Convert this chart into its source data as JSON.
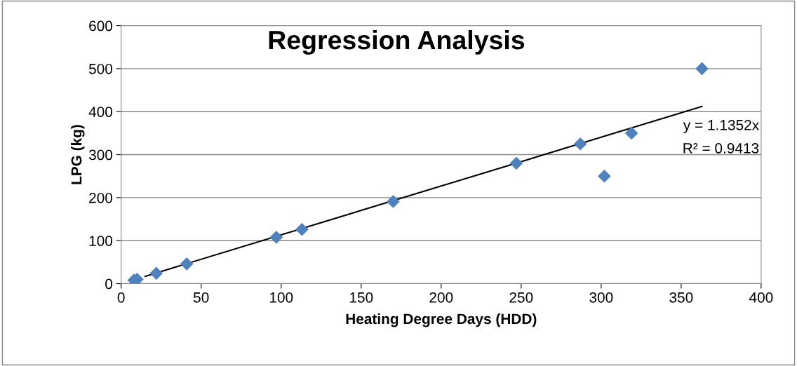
{
  "chart_data": {
    "type": "scatter",
    "title": "Regression Analysis",
    "xlabel": "Heating Degree Days (HDD)",
    "ylabel": "LPG (kg)",
    "xlim": [
      0,
      400
    ],
    "xticks": [
      0,
      50,
      100,
      150,
      200,
      250,
      300,
      350,
      400
    ],
    "ylim": [
      0,
      600
    ],
    "yticks": [
      0,
      100,
      200,
      300,
      400,
      500,
      600
    ],
    "grid": "y",
    "marker": "diamond",
    "legend": false,
    "annotations": [
      "y = 1.1352x",
      "R² = 0.9413"
    ],
    "series": [
      {
        "color": "#4f81bd",
        "x": [
          8,
          10,
          22,
          41,
          95,
          97,
          113,
          170,
          247,
          287,
          302,
          319,
          363
        ],
        "values": [
          8,
          10,
          24,
          46,
          null,
          108,
          126,
          191,
          280,
          325,
          250,
          350,
          500
        ]
      },
      {
        "type": "line",
        "marker": "none",
        "color": "#000000",
        "x": [
          15,
          363
        ],
        "values": [
          17,
          412
        ]
      }
    ]
  }
}
